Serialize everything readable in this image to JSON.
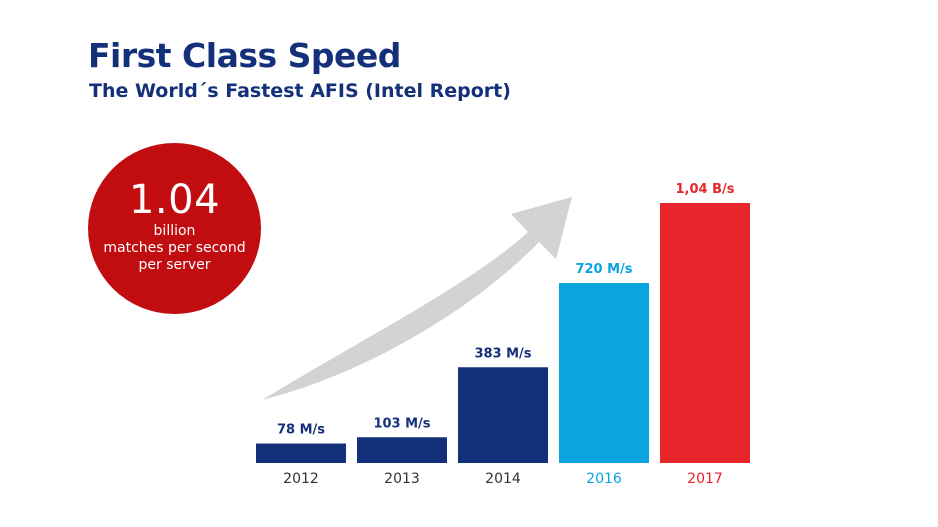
{
  "header": {
    "title": "First Class Speed",
    "subtitle": "The World´s Fastest AFIS (Intel Report)"
  },
  "badge": {
    "value": "1.04",
    "line1": "billion",
    "line2": "matches per second",
    "line3": "per server",
    "color": "#c10d10"
  },
  "chart_data": {
    "type": "bar",
    "categories": [
      "2012",
      "2013",
      "2014",
      "2016",
      "2017"
    ],
    "values": [
      78,
      103,
      383,
      720,
      1040
    ],
    "value_unit": "M/s",
    "data_labels": [
      "78 M/s",
      "103 M/s",
      "383 M/s",
      "720 M/s",
      "1,04 B/s"
    ],
    "bar_colors": [
      "#14307a",
      "#14307a",
      "#14307a",
      "#0aa4e0",
      "#e8252b"
    ],
    "label_colors": [
      "#14307a",
      "#14307a",
      "#14307a",
      "#0aa4e0",
      "#e8252b"
    ],
    "tick_colors": [
      "#333333",
      "#333333",
      "#333333",
      "#0aa4e0",
      "#e8252b"
    ],
    "ylim": [
      0,
      1040
    ],
    "title": "",
    "xlabel": "",
    "ylabel": "",
    "grid": false,
    "legend": "none",
    "trend_arrow_color": "#d3d3d5"
  }
}
